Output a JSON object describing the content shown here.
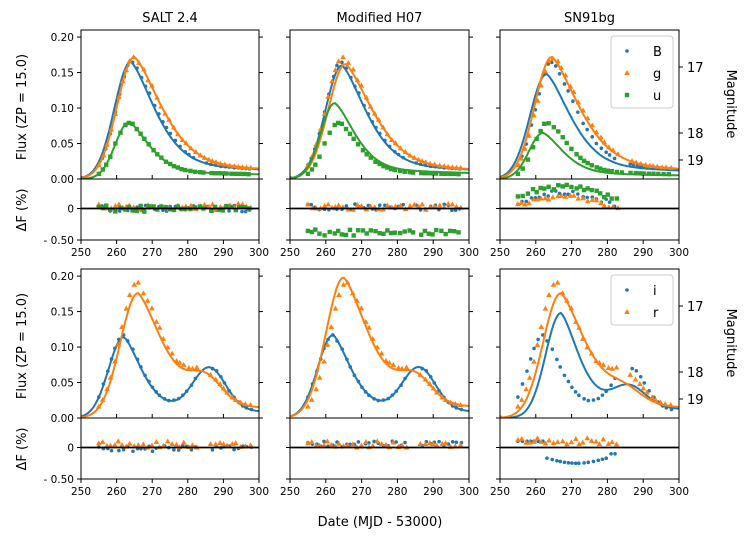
{
  "figure": {
    "xlabel": "Date (MJD - 53000)",
    "ylabel_flux": "Flux (ZP = 15.0)",
    "ylabel_resid": "ΔF (%)",
    "ylabel_mag": "Magnitude",
    "col_titles": [
      "SALT 2.4",
      "Modified H07",
      "SN91bg"
    ]
  },
  "colors": {
    "B": "#1f77b4",
    "g": "#ff7f0e",
    "u": "#2ca02c",
    "i": "#1f77b4",
    "r": "#ff7f0e"
  },
  "chart_data": {
    "type": "scatter",
    "xlim": [
      250,
      300
    ],
    "x_ticks": [
      250,
      260,
      270,
      280,
      290,
      300
    ],
    "flux_ylim": [
      0,
      0.21
    ],
    "flux_ticks": [
      "0.00",
      "0.05",
      "0.10",
      "0.15",
      "0.20"
    ],
    "resid_ylim": [
      -0.5,
      0.5
    ],
    "resid_ticks": [
      "0",
      "- 0.50"
    ],
    "resid_ticks_values": [
      0,
      -0.5
    ],
    "mag_ticks": [
      17,
      18,
      19
    ],
    "rows": [
      {
        "legend": [
          {
            "band": "B",
            "marker": "circle"
          },
          {
            "band": "g",
            "marker": "triangle"
          },
          {
            "band": "u",
            "marker": "square"
          }
        ],
        "bands": [
          {
            "band": "B",
            "marker": "circle",
            "peak_obs": 0.165,
            "t0": 264.5,
            "rise": 6.5,
            "fall": 10.5,
            "second": 0.0,
            "t2": 0,
            "model_peak": [
              0.165,
              0.16,
              0.148
            ],
            "model_t0": [
              264.0,
              264.5,
              263.0
            ],
            "resid_offset": [
              0.0,
              0.02,
              0.1
            ]
          },
          {
            "band": "g",
            "marker": "triangle",
            "peak_obs": 0.172,
            "t0": 265.0,
            "rise": 6.8,
            "fall": 12.0,
            "second": 0.0,
            "t2": 0,
            "model_peak": [
              0.172,
              0.162,
              0.172
            ],
            "model_t0": [
              265.0,
              265.5,
              264.5
            ],
            "resid_offset": [
              0.03,
              0.03,
              0.05
            ]
          },
          {
            "band": "u",
            "marker": "square",
            "peak_obs": 0.08,
            "t0": 263.5,
            "rise": 5.5,
            "fall": 8.5,
            "second": 0.0,
            "t2": 0,
            "model_peak": [
              0.08,
              0.107,
              0.065
            ],
            "model_t0": [
              263.5,
              262.5,
              262.0
            ],
            "resid_offset": [
              0.0,
              -0.38,
              0.2
            ]
          }
        ]
      },
      {
        "legend": [
          {
            "band": "i",
            "marker": "circle"
          },
          {
            "band": "r",
            "marker": "triangle"
          }
        ],
        "bands": [
          {
            "band": "i",
            "marker": "circle",
            "peak_obs": 0.117,
            "t0": 262.0,
            "rise": 6.0,
            "fall": 7.5,
            "second": 0.06,
            "t2": 286,
            "model_peak": [
              0.114,
              0.117,
              0.148
            ],
            "model_t0": [
              262.0,
              262.0,
              267.0
            ],
            "resid_offset": [
              -0.02,
              0.05,
              -0.2
            ]
          },
          {
            "band": "r",
            "marker": "triangle",
            "peak_obs": 0.19,
            "t0": 266.0,
            "rise": 7.0,
            "fall": 11.0,
            "second": 0.035,
            "t2": 285,
            "model_peak": [
              0.176,
              0.198,
              0.176
            ],
            "model_t0": [
              266.0,
              265.0,
              267.0
            ],
            "resid_offset": [
              0.05,
              0.05,
              0.1
            ]
          }
        ]
      }
    ]
  }
}
